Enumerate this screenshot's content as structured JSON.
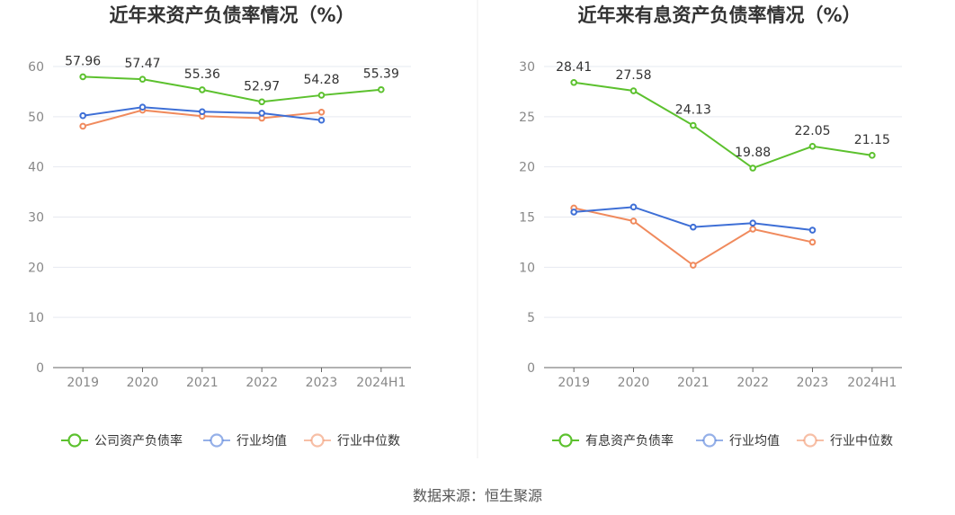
{
  "source": "数据来源：恒生聚源",
  "chart_data": [
    {
      "type": "line",
      "title": "近年来资产负债率情况（%）",
      "categories": [
        "2019",
        "2020",
        "2021",
        "2022",
        "2023",
        "2024H1"
      ],
      "ylim": [
        0,
        60
      ],
      "yticks": [
        0,
        10,
        20,
        30,
        40,
        50,
        60
      ],
      "grid": true,
      "legend_position": "bottom",
      "series": [
        {
          "name": "公司资产负债率",
          "color": "#5cc12e",
          "values": [
            57.96,
            57.47,
            55.36,
            52.97,
            54.28,
            55.39
          ],
          "labels": [
            "57.96",
            "57.47",
            "55.36",
            "52.97",
            "54.28",
            "55.39"
          ]
        },
        {
          "name": "行业均值",
          "color": "#3e6fd6",
          "values": [
            50.2,
            51.9,
            51.0,
            50.7,
            49.3,
            null
          ]
        },
        {
          "name": "行业中位数",
          "color": "#f08a5d",
          "values": [
            48.1,
            51.3,
            50.1,
            49.7,
            50.9,
            null
          ]
        }
      ]
    },
    {
      "type": "line",
      "title": "近年来有息资产负债率情况（%）",
      "categories": [
        "2019",
        "2020",
        "2021",
        "2022",
        "2023",
        "2024H1"
      ],
      "ylim": [
        0,
        30
      ],
      "yticks": [
        0,
        5,
        10,
        15,
        20,
        25,
        30
      ],
      "grid": true,
      "legend_position": "bottom",
      "series": [
        {
          "name": "有息资产负债率",
          "color": "#5cc12e",
          "values": [
            28.41,
            27.58,
            24.13,
            19.88,
            22.05,
            21.15
          ],
          "labels": [
            "28.41",
            "27.58",
            "24.13",
            "19.88",
            "22.05",
            "21.15"
          ]
        },
        {
          "name": "行业均值",
          "color": "#3e6fd6",
          "values": [
            15.5,
            16.0,
            14.0,
            14.4,
            13.7,
            null
          ]
        },
        {
          "name": "行业中位数",
          "color": "#f08a5d",
          "values": [
            15.9,
            14.6,
            10.2,
            13.8,
            12.5,
            null
          ]
        }
      ]
    }
  ]
}
